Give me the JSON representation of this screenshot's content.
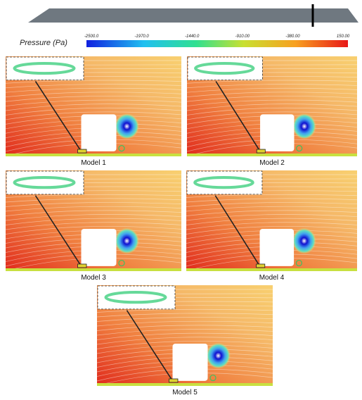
{
  "colorbar": {
    "title": "Pressure (Pa)",
    "tick_labels": [
      "-2500.0",
      "-1970.0",
      "-1440.0",
      "-910.00",
      "-380.00",
      "150.00"
    ]
  },
  "panels": [
    {
      "label": "Model 1"
    },
    {
      "label": "Model 2"
    },
    {
      "label": "Model 3"
    },
    {
      "label": "Model 4"
    },
    {
      "label": "Model 5"
    }
  ]
}
